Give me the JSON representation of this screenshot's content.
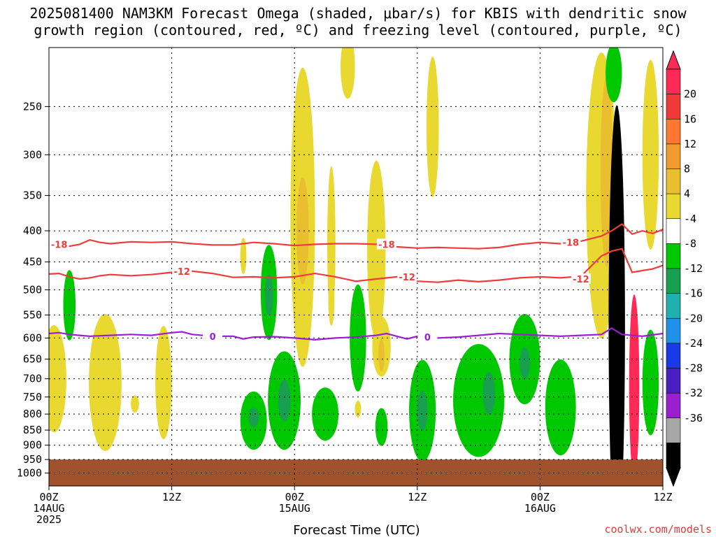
{
  "chart_data": {
    "type": "heatmap",
    "title_line1": "2025081400 NAM3KM Forecast Omega (shaded, μbar/s) for KBIS with dendritic snow",
    "title_line2": "growth region (contoured, red, ºC) and freezing level (contoured, purple, ºC)",
    "xlabel": "Forecast Time (UTC)",
    "credit": "coolwx.com/models",
    "x_ticks": [
      {
        "hour": 0,
        "lines": [
          "00Z",
          "14AUG",
          "2025"
        ]
      },
      {
        "hour": 12,
        "lines": [
          "12Z"
        ]
      },
      {
        "hour": 24,
        "lines": [
          "00Z",
          "15AUG"
        ]
      },
      {
        "hour": 36,
        "lines": [
          "12Z"
        ]
      },
      {
        "hour": 48,
        "lines": [
          "00Z",
          "16AUG"
        ]
      },
      {
        "hour": 60,
        "lines": [
          "12Z"
        ]
      }
    ],
    "xlim": [
      0,
      60
    ],
    "y_scale": "log-pressure",
    "ylim_hPa": [
      1050,
      200
    ],
    "y_ticks": [
      250,
      300,
      350,
      400,
      450,
      500,
      550,
      600,
      650,
      700,
      750,
      800,
      850,
      900,
      950,
      1000
    ],
    "grid": "dotted",
    "ground_below_hPa": 950,
    "ground_color": "#a0522d",
    "colorbar": {
      "labels": [
        "20",
        "16",
        "12",
        "8",
        "4",
        "-4",
        "-8",
        "-12",
        "-16",
        "-20",
        "-24",
        "-28",
        "-32",
        "-36"
      ],
      "colors": [
        "#ff2a55",
        "#f03a3a",
        "#ff7733",
        "#f09a30",
        "#eabf2f",
        "#e8d830",
        "#ffffff",
        "#00c800",
        "#18a050",
        "#20b0b0",
        "#2090e8",
        "#1a3ae8",
        "#4a1fc0",
        "#9a1fd0",
        "#a7a7a7",
        "#000000"
      ]
    },
    "temperature_contours": [
      {
        "level": "-18",
        "color": "#ee3b3b",
        "points": [
          [
            0,
            421
          ],
          [
            1,
            420
          ],
          [
            2,
            424
          ],
          [
            3,
            421
          ],
          [
            4,
            414
          ],
          [
            5,
            418
          ],
          [
            6,
            420
          ],
          [
            8,
            417
          ],
          [
            10,
            418
          ],
          [
            12,
            417
          ],
          [
            14,
            420
          ],
          [
            16,
            422
          ],
          [
            18,
            422
          ],
          [
            20,
            418
          ],
          [
            22,
            420
          ],
          [
            24,
            423
          ],
          [
            26,
            421
          ],
          [
            28,
            420
          ],
          [
            30,
            420
          ],
          [
            32,
            421
          ],
          [
            34,
            425
          ],
          [
            36,
            427
          ],
          [
            38,
            426
          ],
          [
            40,
            427
          ],
          [
            42,
            428
          ],
          [
            44,
            426
          ],
          [
            46,
            421
          ],
          [
            48,
            418
          ],
          [
            50,
            420
          ],
          [
            52,
            416
          ],
          [
            54,
            408
          ],
          [
            55,
            400
          ],
          [
            56,
            390
          ],
          [
            57,
            405
          ],
          [
            58,
            400
          ],
          [
            59,
            404
          ],
          [
            60,
            398
          ]
        ],
        "labels": [
          [
            1,
            421
          ],
          [
            33,
            421
          ],
          [
            51,
            418
          ]
        ]
      },
      {
        "level": "-12",
        "color": "#ee3b3b",
        "points": [
          [
            0,
            471
          ],
          [
            1,
            470
          ],
          [
            2,
            476
          ],
          [
            3,
            480
          ],
          [
            4,
            478
          ],
          [
            5,
            474
          ],
          [
            6,
            472
          ],
          [
            8,
            474
          ],
          [
            10,
            472
          ],
          [
            12,
            468
          ],
          [
            14,
            466
          ],
          [
            16,
            470
          ],
          [
            18,
            477
          ],
          [
            20,
            476
          ],
          [
            22,
            478
          ],
          [
            24,
            476
          ],
          [
            26,
            470
          ],
          [
            28,
            476
          ],
          [
            30,
            484
          ],
          [
            32,
            480
          ],
          [
            34,
            476
          ],
          [
            36,
            484
          ],
          [
            38,
            486
          ],
          [
            40,
            482
          ],
          [
            42,
            485
          ],
          [
            44,
            482
          ],
          [
            46,
            478
          ],
          [
            48,
            476
          ],
          [
            50,
            478
          ],
          [
            52,
            475
          ],
          [
            54,
            440
          ],
          [
            55,
            432
          ],
          [
            56,
            428
          ],
          [
            57,
            468
          ],
          [
            58,
            465
          ],
          [
            59,
            462
          ],
          [
            60,
            456
          ]
        ],
        "labels": [
          [
            13,
            466
          ],
          [
            35,
            476
          ],
          [
            52,
            480
          ]
        ]
      }
    ],
    "freezing_contours": [
      {
        "level": "0",
        "color": "#9a1fd0",
        "points": [
          [
            0,
            590
          ],
          [
            1,
            588
          ],
          [
            2,
            592
          ],
          [
            3,
            594
          ],
          [
            4,
            596
          ],
          [
            6,
            594
          ],
          [
            8,
            592
          ],
          [
            10,
            594
          ],
          [
            12,
            588
          ],
          [
            13,
            586
          ],
          [
            14,
            592
          ],
          [
            16,
            596
          ],
          [
            18,
            596
          ],
          [
            19,
            602
          ],
          [
            20,
            598
          ],
          [
            22,
            597
          ],
          [
            24,
            600
          ],
          [
            26,
            604
          ],
          [
            28,
            600
          ],
          [
            30,
            598
          ],
          [
            32,
            594
          ],
          [
            33,
            590
          ],
          [
            34,
            596
          ],
          [
            35,
            602
          ],
          [
            36,
            596
          ],
          [
            37,
            604
          ],
          [
            38,
            600
          ],
          [
            40,
            598
          ],
          [
            42,
            594
          ],
          [
            44,
            590
          ],
          [
            46,
            592
          ],
          [
            48,
            594
          ],
          [
            50,
            596
          ],
          [
            52,
            594
          ],
          [
            54,
            592
          ],
          [
            55,
            578
          ],
          [
            56,
            592
          ],
          [
            58,
            596
          ],
          [
            60,
            590
          ]
        ],
        "labels": [
          [
            16,
            596
          ],
          [
            37,
            598
          ]
        ]
      }
    ],
    "omega_regions": [
      {
        "level": "4",
        "color": "#e8d830",
        "t": 0.5,
        "p": 700,
        "dt": 1.2,
        "dp": 140
      },
      {
        "level": "4",
        "color": "#e8d830",
        "t": 5.5,
        "p": 710,
        "dt": 1.6,
        "dp": 180
      },
      {
        "level": "4",
        "color": "#e8d830",
        "t": 11.2,
        "p": 710,
        "dt": 0.8,
        "dp": 150
      },
      {
        "level": "4",
        "color": "#e8d830",
        "t": 8.4,
        "p": 770,
        "dt": 0.4,
        "dp": 25
      },
      {
        "level": "4",
        "color": "#e8d830",
        "t": 19.0,
        "p": 440,
        "dt": 0.3,
        "dp": 30
      },
      {
        "level": "4",
        "color": "#e8d830",
        "t": 24.8,
        "p": 380,
        "dt": 1.2,
        "dp": 240
      },
      {
        "level": "8",
        "color": "#eabf2f",
        "t": 24.8,
        "p": 400,
        "dt": 0.6,
        "dp": 80
      },
      {
        "level": "4",
        "color": "#e8d830",
        "t": 27.6,
        "p": 420,
        "dt": 0.4,
        "dp": 120
      },
      {
        "level": "4",
        "color": "#e8d830",
        "t": 27.6,
        "p": 520,
        "dt": 0.3,
        "dp": 50
      },
      {
        "level": "4",
        "color": "#e8d830",
        "t": 29.2,
        "p": 215,
        "dt": 0.7,
        "dp": 40
      },
      {
        "level": "4",
        "color": "#e8d830",
        "t": 32.0,
        "p": 430,
        "dt": 0.9,
        "dp": 140
      },
      {
        "level": "4",
        "color": "#e8d830",
        "t": 32.5,
        "p": 620,
        "dt": 0.9,
        "dp": 70
      },
      {
        "level": "8",
        "color": "#eabf2f",
        "t": 32.5,
        "p": 640,
        "dt": 0.3,
        "dp": 40
      },
      {
        "level": "4",
        "color": "#e8d830",
        "t": 37.5,
        "p": 270,
        "dt": 0.6,
        "dp": 70
      },
      {
        "level": "4",
        "color": "#e8d830",
        "t": 30.2,
        "p": 785,
        "dt": 0.3,
        "dp": 25
      },
      {
        "level": "4",
        "color": "#e8d830",
        "t": 54.0,
        "p": 350,
        "dt": 1.5,
        "dp": 240
      },
      {
        "level": "8",
        "color": "#eabf2f",
        "t": 54.5,
        "p": 320,
        "dt": 0.6,
        "dp": 110
      },
      {
        "level": "4",
        "color": "#e8d830",
        "t": 58.8,
        "p": 300,
        "dt": 0.8,
        "dp": 110
      },
      {
        "level": "-4",
        "color": "#00c800",
        "t": 2.0,
        "p": 530,
        "dt": 0.6,
        "dp": 70
      },
      {
        "level": "-4",
        "color": "#00c800",
        "t": 21.5,
        "p": 505,
        "dt": 0.8,
        "dp": 90
      },
      {
        "level": "-8",
        "color": "#18a050",
        "t": 21.5,
        "p": 510,
        "dt": 0.4,
        "dp": 40
      },
      {
        "level": "-4",
        "color": "#00c800",
        "t": 20.0,
        "p": 820,
        "dt": 1.3,
        "dp": 90
      },
      {
        "level": "-8",
        "color": "#18a050",
        "t": 20.0,
        "p": 810,
        "dt": 0.5,
        "dp": 30
      },
      {
        "level": "-4",
        "color": "#00c800",
        "t": 23.0,
        "p": 760,
        "dt": 1.6,
        "dp": 140
      },
      {
        "level": "-8",
        "color": "#18a050",
        "t": 23.0,
        "p": 760,
        "dt": 0.6,
        "dp": 60
      },
      {
        "level": "-4",
        "color": "#00c800",
        "t": 27.0,
        "p": 800,
        "dt": 1.3,
        "dp": 80
      },
      {
        "level": "-4",
        "color": "#00c800",
        "t": 30.2,
        "p": 600,
        "dt": 0.8,
        "dp": 120
      },
      {
        "level": "-4",
        "color": "#00c800",
        "t": 32.5,
        "p": 840,
        "dt": 0.6,
        "dp": 60
      },
      {
        "level": "-4",
        "color": "#00c800",
        "t": 36.5,
        "p": 790,
        "dt": 1.3,
        "dp": 150
      },
      {
        "level": "-8",
        "color": "#18a050",
        "t": 36.5,
        "p": 790,
        "dt": 0.5,
        "dp": 60
      },
      {
        "level": "-4",
        "color": "#00c800",
        "t": 42.0,
        "p": 760,
        "dt": 2.5,
        "dp": 160
      },
      {
        "level": "-8",
        "color": "#18a050",
        "t": 43.0,
        "p": 740,
        "dt": 0.6,
        "dp": 60
      },
      {
        "level": "-4",
        "color": "#00c800",
        "t": 46.5,
        "p": 650,
        "dt": 1.5,
        "dp": 110
      },
      {
        "level": "-8",
        "color": "#18a050",
        "t": 46.5,
        "p": 660,
        "dt": 0.5,
        "dp": 40
      },
      {
        "level": "-4",
        "color": "#00c800",
        "t": 50.0,
        "p": 780,
        "dt": 1.5,
        "dp": 140
      },
      {
        "level": "-4",
        "color": "#00c800",
        "t": 55.2,
        "p": 220,
        "dt": 0.8,
        "dp": 30
      },
      {
        "level": "-4",
        "color": "#00c800",
        "t": 58.8,
        "p": 710,
        "dt": 0.8,
        "dp": 140
      },
      {
        "level": "-36",
        "color": "#000000",
        "t": 55.5,
        "p": 570,
        "dt": 0.8,
        "dp": 560
      },
      {
        "level": "20",
        "color": "#ff2a55",
        "t": 57.2,
        "p": 720,
        "dt": 0.5,
        "dp": 240
      }
    ]
  }
}
